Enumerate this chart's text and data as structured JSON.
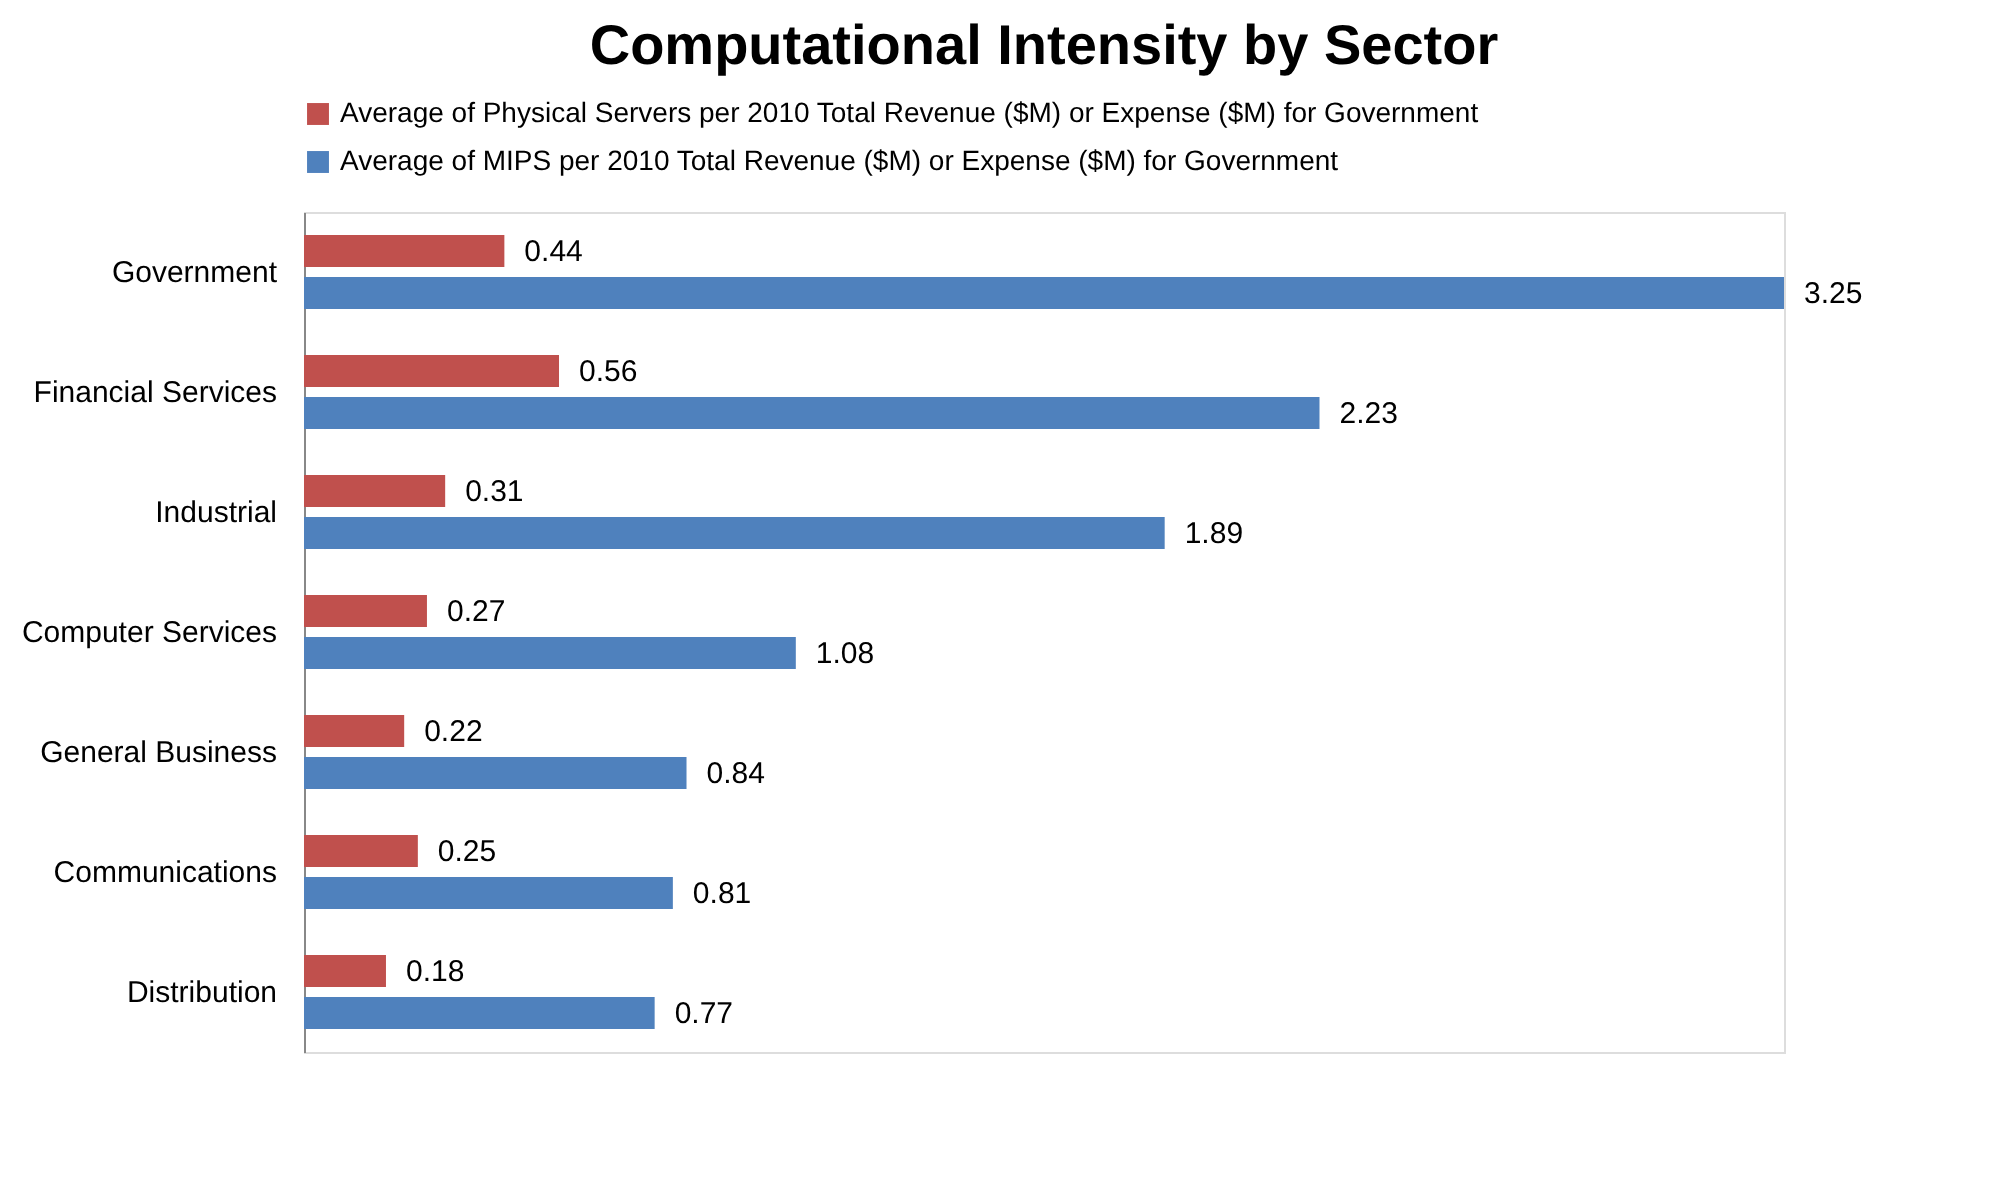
{
  "chart_data": {
    "type": "bar",
    "orientation": "horizontal",
    "title": "Computational Intensity by Sector",
    "categories": [
      "Government",
      "Financial Services",
      "Industrial",
      "Computer Services",
      "General Business",
      "Communications",
      "Distribution"
    ],
    "series": [
      {
        "name": "Average of Physical Servers per 2010 Total Revenue ($M) or Expense ($M) for Government",
        "color": "#c0504d",
        "values": [
          0.44,
          0.56,
          0.31,
          0.27,
          0.22,
          0.25,
          0.18
        ]
      },
      {
        "name": "Average of MIPS per 2010 Total Revenue ($M) or Expense ($M) for Government",
        "color": "#4f81bd",
        "values": [
          3.25,
          2.23,
          1.89,
          1.08,
          0.84,
          0.81,
          0.77
        ]
      }
    ],
    "data_labels": true,
    "legend": "top",
    "grid": false
  }
}
